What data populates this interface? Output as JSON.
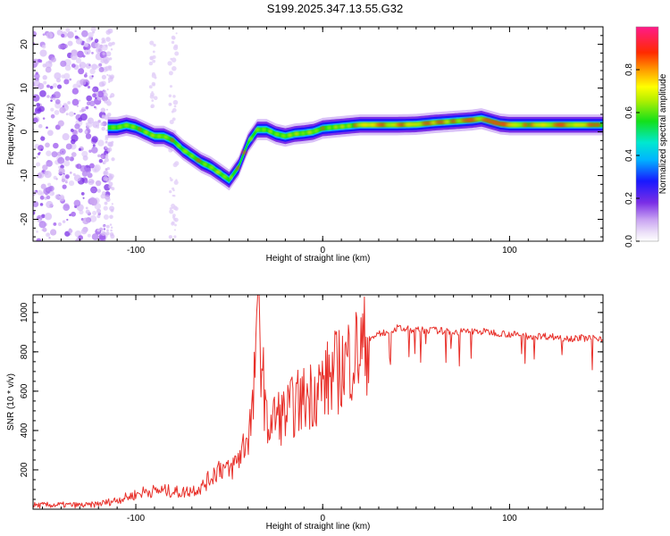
{
  "title": "S199.2025.347.13.55.G32",
  "chart_data": [
    {
      "type": "heatmap",
      "xlabel": "Height of straight line (km)",
      "ylabel": "Frequency (Hz)",
      "xlim": [
        -155,
        150
      ],
      "ylim": [
        -25,
        24
      ],
      "xticks": [
        -100,
        0,
        100
      ],
      "yticks": [
        -20,
        -10,
        0,
        10,
        20
      ],
      "colorbar": {
        "label": "Normalized spectral amplitude",
        "range": [
          0.0,
          1.0
        ],
        "ticks": [
          "0.0",
          "0.2",
          "0.4",
          "0.6",
          "0.8"
        ]
      },
      "ridge": {
        "x": [
          -115,
          -110,
          -105,
          -100,
          -95,
          -90,
          -85,
          -80,
          -75,
          -70,
          -65,
          -60,
          -55,
          -50,
          -45,
          -40,
          -35,
          -30,
          -25,
          -20,
          -15,
          -10,
          -5,
          0,
          10,
          20,
          30,
          40,
          50,
          60,
          70,
          80,
          85,
          90,
          95,
          100,
          110,
          120,
          130,
          140,
          150
        ],
        "y": [
          1,
          1,
          1.5,
          1,
          0,
          -1,
          -1,
          -2,
          -4,
          -5.5,
          -7,
          -8,
          -9.5,
          -11,
          -8,
          -2.5,
          0.5,
          0.5,
          -0.5,
          -1,
          -0.5,
          -0.3,
          0,
          0.8,
          1.2,
          1.6,
          1.6,
          1.6,
          1.7,
          2.1,
          2.4,
          2.7,
          3,
          2.4,
          1.8,
          1.6,
          1.6,
          1.6,
          1.6,
          1.6,
          1.6
        ]
      }
    },
    {
      "type": "line",
      "xlabel": "Height of straight line (km)",
      "ylabel": "SNR (10 * v/v)",
      "xlim": [
        -155,
        150
      ],
      "ylim": [
        0,
        1090
      ],
      "xticks": [
        -100,
        0,
        100
      ],
      "yticks": [
        200,
        400,
        600,
        800,
        1000
      ],
      "series": [
        {
          "name": "SNR",
          "color": "#e8302a",
          "x": [
            -155,
            -140,
            -125,
            -115,
            -105,
            -95,
            -85,
            -75,
            -65,
            -60,
            -55,
            -50,
            -45,
            -40,
            -37,
            -35,
            -30,
            -25,
            -20,
            -15,
            -10,
            -5,
            0,
            5,
            10,
            15,
            20,
            25,
            30,
            40,
            50,
            60,
            70,
            80,
            90,
            100,
            110,
            120,
            130,
            140,
            150
          ],
          "y": [
            20,
            22,
            20,
            35,
            60,
            90,
            95,
            85,
            110,
            160,
            220,
            190,
            260,
            380,
            520,
            1090,
            420,
            470,
            480,
            530,
            560,
            600,
            630,
            680,
            720,
            780,
            810,
            860,
            890,
            920,
            910,
            910,
            900,
            905,
            900,
            890,
            880,
            880,
            870,
            870,
            870
          ]
        }
      ]
    }
  ]
}
